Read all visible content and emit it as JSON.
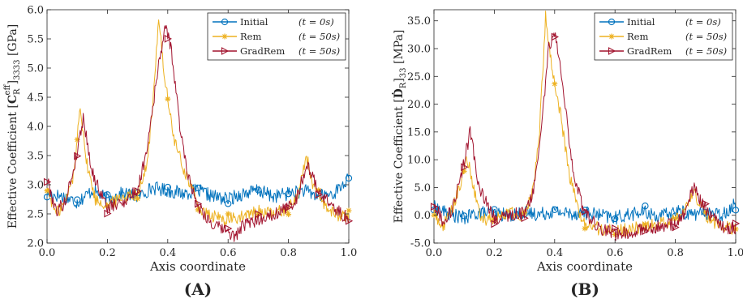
{
  "panels": [
    {
      "label": "(A)",
      "ylabel": "Effective Coefficient [C_R^eff]_3333 [GPa]",
      "ylabel_parts": {
        "prefix": "Effective Coefficient [",
        "sym": "C",
        "sub_r": "R",
        "sup": "eff",
        "close": "]",
        "sub": "3333",
        "unit": " [GPa]"
      }
    },
    {
      "label": "(B)",
      "ylabel": "Effective Coefficient [Ḋ_R]_33 [MPa]",
      "ylabel_parts": {
        "prefix": "Effective Coefficient [",
        "sym": "Ḋ",
        "sub_r": "R",
        "sup": "",
        "close": "]",
        "sub": "33",
        "unit": " [MPa]"
      }
    }
  ],
  "legend_labels": [
    {
      "name": "Initial",
      "time": "(t = 0s)"
    },
    {
      "name": "Rem",
      "time": "(t = 50s)"
    },
    {
      "name": "GradRem",
      "time": "(t = 50s)"
    }
  ],
  "colors": {
    "Initial": "#0072BD",
    "Rem": "#EDB120",
    "GradRem": "#A2142F",
    "axis": "#262626"
  },
  "chart_data": [
    {
      "type": "line",
      "title": "",
      "xlabel": "Axis coordinate",
      "ylabel": "Effective Coefficient [C_R^eff]_3333 [GPa]",
      "xlim": [
        0,
        1
      ],
      "ylim": [
        2,
        6
      ],
      "xticks": [
        "0.0",
        "0.2",
        "0.4",
        "0.6",
        "0.8",
        "1.0"
      ],
      "yticks": [
        "2.0",
        "2.5",
        "3.0",
        "3.5",
        "4.0",
        "4.5",
        "5.0",
        "5.5",
        "6.0"
      ],
      "legend_position": "top-right",
      "series": [
        {
          "name": "Initial",
          "marker": "circle",
          "x": [
            0,
            0.05,
            0.1,
            0.15,
            0.2,
            0.25,
            0.3,
            0.35,
            0.4,
            0.45,
            0.5,
            0.55,
            0.6,
            0.65,
            0.7,
            0.75,
            0.8,
            0.85,
            0.9,
            0.95,
            1.0
          ],
          "y": [
            2.85,
            2.8,
            2.7,
            2.9,
            2.75,
            2.85,
            2.8,
            2.95,
            2.9,
            2.85,
            2.9,
            2.8,
            2.75,
            2.85,
            2.9,
            2.8,
            2.85,
            2.9,
            2.8,
            2.85,
            3.1
          ]
        },
        {
          "name": "Rem",
          "marker": "asterisk",
          "x": [
            0,
            0.03,
            0.06,
            0.09,
            0.11,
            0.13,
            0.16,
            0.2,
            0.25,
            0.3,
            0.33,
            0.35,
            0.37,
            0.39,
            0.42,
            0.45,
            0.48,
            0.5,
            0.52,
            0.55,
            0.6,
            0.65,
            0.7,
            0.75,
            0.8,
            0.83,
            0.86,
            0.88,
            0.91,
            0.95,
            1.0
          ],
          "y": [
            2.95,
            2.5,
            2.7,
            3.2,
            4.4,
            3.4,
            2.75,
            2.65,
            2.8,
            2.85,
            3.3,
            4.3,
            5.9,
            4.8,
            3.8,
            3.3,
            2.95,
            2.65,
            2.5,
            2.45,
            2.4,
            2.45,
            2.55,
            2.5,
            2.6,
            2.8,
            3.5,
            3.0,
            2.7,
            2.5,
            2.45
          ]
        },
        {
          "name": "GradRem",
          "marker": "triangle-right",
          "x": [
            0,
            0.03,
            0.06,
            0.09,
            0.12,
            0.15,
            0.2,
            0.25,
            0.3,
            0.33,
            0.36,
            0.39,
            0.41,
            0.44,
            0.47,
            0.5,
            0.55,
            0.6,
            0.62,
            0.65,
            0.7,
            0.75,
            0.8,
            0.83,
            0.86,
            0.9,
            0.95,
            1.0
          ],
          "y": [
            3.1,
            2.55,
            2.7,
            3.3,
            4.15,
            3.2,
            2.6,
            2.7,
            2.9,
            3.6,
            4.7,
            5.7,
            5.4,
            4.0,
            3.1,
            2.65,
            2.3,
            2.2,
            2.1,
            2.3,
            2.4,
            2.5,
            2.6,
            2.8,
            3.35,
            2.9,
            2.6,
            2.4
          ]
        }
      ]
    },
    {
      "type": "line",
      "title": "",
      "xlabel": "Axis coordinate",
      "ylabel": "Effective Coefficient [Ḋ_R]_33 [MPa]",
      "xlim": [
        0,
        1
      ],
      "ylim": [
        -5,
        37
      ],
      "xticks": [
        "0.0",
        "0.2",
        "0.4",
        "0.6",
        "0.8",
        "1.0"
      ],
      "yticks": [
        "-5.0",
        "0.0",
        "5.0",
        "10.0",
        "15.0",
        "20.0",
        "25.0",
        "30.0",
        "35.0"
      ],
      "legend_position": "top-right",
      "series": [
        {
          "name": "Initial",
          "marker": "circle",
          "x": [
            0,
            0.05,
            0.1,
            0.15,
            0.2,
            0.25,
            0.3,
            0.35,
            0.4,
            0.45,
            0.5,
            0.55,
            0.6,
            0.65,
            0.7,
            0.75,
            0.8,
            0.85,
            0.9,
            0.95,
            1.0
          ],
          "y": [
            1.5,
            0.2,
            -0.5,
            0.5,
            0.3,
            0.0,
            0.5,
            0.2,
            0.8,
            0.3,
            0.5,
            0.0,
            -0.5,
            0.2,
            0.5,
            -0.3,
            0.8,
            0.2,
            0.5,
            0.0,
            2.0
          ]
        },
        {
          "name": "Rem",
          "marker": "asterisk",
          "x": [
            0,
            0.03,
            0.06,
            0.09,
            0.11,
            0.13,
            0.16,
            0.2,
            0.25,
            0.3,
            0.33,
            0.35,
            0.37,
            0.39,
            0.42,
            0.45,
            0.48,
            0.5,
            0.55,
            0.6,
            0.65,
            0.7,
            0.75,
            0.8,
            0.83,
            0.86,
            0.88,
            0.91,
            0.95,
            1.0
          ],
          "y": [
            0.5,
            -2.0,
            1.0,
            6.0,
            10.5,
            5.0,
            -1.0,
            -0.5,
            0.5,
            0.0,
            5.0,
            15.0,
            36.0,
            27.0,
            18.0,
            7.0,
            0.5,
            -1.5,
            -2.5,
            -2.8,
            -2.5,
            -2.0,
            -1.5,
            -1.0,
            0.5,
            4.5,
            2.0,
            -1.0,
            -2.0,
            -2.5
          ]
        },
        {
          "name": "GradRem",
          "marker": "triangle-right",
          "x": [
            0,
            0.03,
            0.06,
            0.09,
            0.12,
            0.15,
            0.2,
            0.25,
            0.3,
            0.33,
            0.36,
            0.38,
            0.4,
            0.43,
            0.46,
            0.5,
            0.55,
            0.6,
            0.65,
            0.7,
            0.75,
            0.8,
            0.83,
            0.86,
            0.9,
            0.95,
            1.0
          ],
          "y": [
            2.0,
            -1.0,
            1.0,
            7.0,
            15.0,
            5.0,
            -0.5,
            0.0,
            0.5,
            4.0,
            18.0,
            30.0,
            33.0,
            22.0,
            8.0,
            0.5,
            -2.5,
            -3.5,
            -3.0,
            -2.5,
            -2.0,
            -1.5,
            0.5,
            5.0,
            1.0,
            -2.0,
            -2.5
          ]
        }
      ]
    }
  ]
}
